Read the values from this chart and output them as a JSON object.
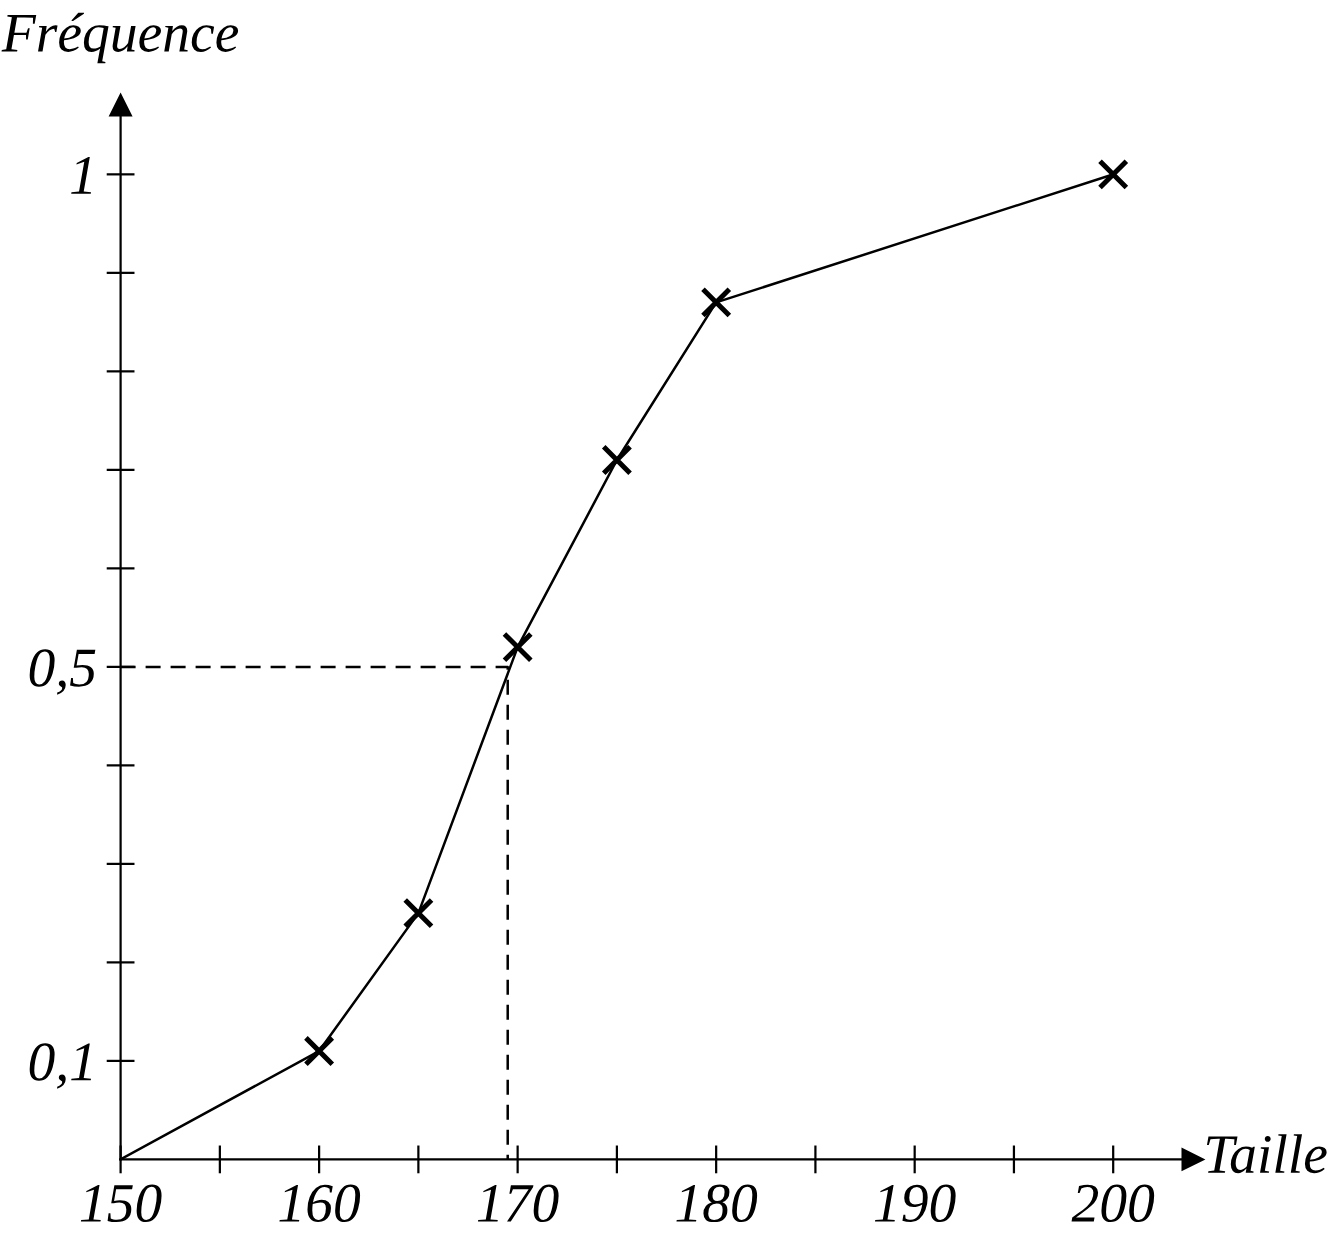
{
  "chart_data": {
    "type": "line",
    "xlabel": "Taille",
    "ylabel": "Fréquence",
    "xlim": [
      150,
      204
    ],
    "ylim": [
      0,
      1.07
    ],
    "xticks": [
      150,
      {
        "value": 155,
        "label": null
      },
      160,
      {
        "value": 165,
        "label": null
      },
      170,
      {
        "value": 175,
        "label": null
      },
      180,
      {
        "value": 185,
        "label": null
      },
      190,
      {
        "value": 195,
        "label": null
      },
      200
    ],
    "yticks": [
      {
        "value": 0.1,
        "label": "0,1"
      },
      {
        "value": 0.2,
        "label": null
      },
      {
        "value": 0.3,
        "label": null
      },
      {
        "value": 0.4,
        "label": null
      },
      {
        "value": 0.5,
        "label": "0,5"
      },
      {
        "value": 0.6,
        "label": null
      },
      {
        "value": 0.7,
        "label": null
      },
      {
        "value": 0.8,
        "label": null
      },
      {
        "value": 0.9,
        "label": null
      },
      {
        "value": 1,
        "label": "1"
      }
    ],
    "grid": false,
    "legend": false,
    "series": [
      {
        "color": "#000000",
        "marker": "none",
        "line_style": "solid",
        "x": [
          150,
          160,
          165,
          170,
          175,
          180,
          200
        ],
        "values": [
          0,
          0.11,
          0.25,
          0.52,
          0.71,
          0.87,
          1
        ]
      },
      {
        "type": "scatter",
        "color": "#000000",
        "marker": "cross",
        "x": [
          160,
          165,
          170,
          175,
          180,
          200
        ],
        "values": [
          0.11,
          0.25,
          0.52,
          0.71,
          0.87,
          1
        ]
      },
      {
        "type": "line",
        "color": "#000000",
        "marker": "none",
        "line_style": "dashed",
        "x": [
          150,
          169.5,
          169.5
        ],
        "values": [
          0.5,
          0.5,
          0
        ]
      }
    ]
  }
}
